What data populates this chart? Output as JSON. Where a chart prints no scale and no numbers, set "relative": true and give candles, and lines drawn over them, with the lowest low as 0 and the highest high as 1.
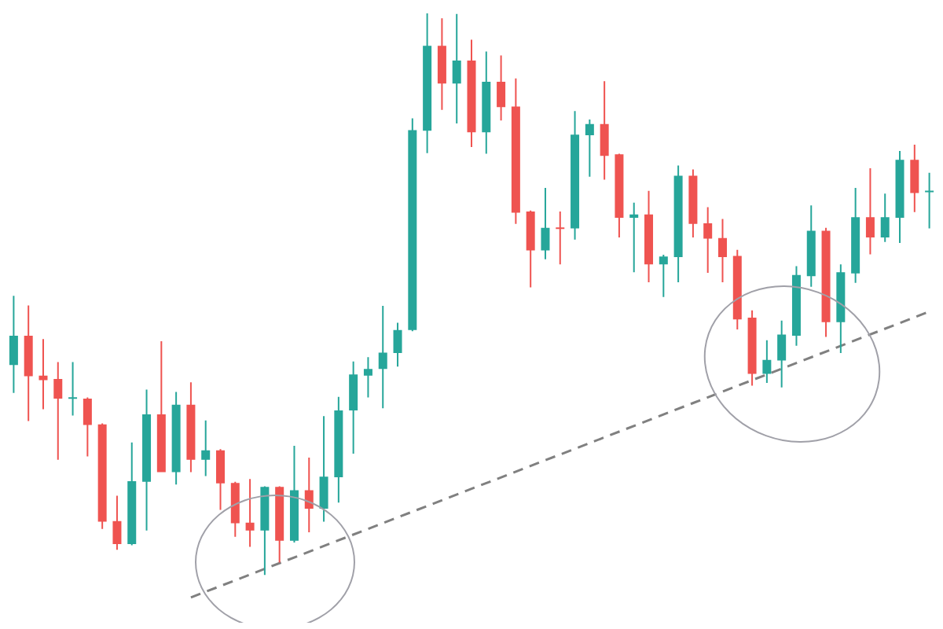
{
  "chart_data": {
    "type": "candlestick",
    "relative": true,
    "grid": false,
    "legend": false,
    "categories": [
      null,
      null,
      null,
      null,
      null,
      null,
      null,
      null,
      null,
      null,
      null,
      null,
      null,
      null,
      null,
      null,
      null,
      null,
      null,
      null,
      null,
      null,
      null,
      null,
      null,
      null,
      null,
      null,
      null,
      null,
      null,
      null,
      null,
      null,
      null,
      null,
      null,
      null,
      null,
      null,
      null,
      null,
      null,
      null,
      null,
      null,
      null,
      null,
      null,
      null,
      null,
      null,
      null,
      null,
      null,
      null,
      null,
      null,
      null,
      null,
      null,
      null,
      null
    ],
    "series": [
      {
        "type": "candlestick",
        "ohlc": [
          [
            0.374,
            0.497,
            0.324,
            0.426
          ],
          [
            0.426,
            0.48,
            0.274,
            0.354
          ],
          [
            0.355,
            0.42,
            0.295,
            0.347
          ],
          [
            0.349,
            0.379,
            0.205,
            0.314
          ],
          [
            0.314,
            0.379,
            0.284,
            0.316
          ],
          [
            0.314,
            0.316,
            0.211,
            0.267
          ],
          [
            0.268,
            0.27,
            0.082,
            0.095
          ],
          [
            0.096,
            0.141,
            0.045,
            0.055
          ],
          [
            0.055,
            0.236,
            0.053,
            0.167
          ],
          [
            0.166,
            0.33,
            0.079,
            0.286
          ],
          [
            0.286,
            0.416,
            0.183,
            0.183
          ],
          [
            0.183,
            0.326,
            0.161,
            0.303
          ],
          [
            0.303,
            0.343,
            0.183,
            0.205
          ],
          [
            0.205,
            0.275,
            0.176,
            0.222
          ],
          [
            0.222,
            0.224,
            0.116,
            0.163
          ],
          [
            0.164,
            0.166,
            0.068,
            0.092
          ],
          [
            0.093,
            0.171,
            0.05,
            0.079
          ],
          [
            0.079,
            0.158,
            0,
            0.157
          ],
          [
            0.157,
            0.158,
            0.022,
            0.061
          ],
          [
            0.061,
            0.23,
            0.058,
            0.151
          ],
          [
            0.151,
            0.209,
            0.076,
            0.118
          ],
          [
            0.118,
            0.283,
            0.095,
            0.175
          ],
          [
            0.174,
            0.317,
            0.129,
            0.293
          ],
          [
            0.293,
            0.38,
            0.216,
            0.357
          ],
          [
            0.355,
            0.388,
            0.316,
            0.367
          ],
          [
            0.367,
            0.479,
            0.297,
            0.396
          ],
          [
            0.395,
            0.449,
            0.371,
            0.436
          ],
          [
            0.436,
            0.813,
            0.434,
            0.792
          ],
          [
            0.791,
            1,
            0.751,
            0.942
          ],
          [
            0.942,
            0.991,
            0.828,
            0.875
          ],
          [
            0.875,
            0.999,
            0.804,
            0.916
          ],
          [
            0.916,
            0.953,
            0.762,
            0.788
          ],
          [
            0.788,
            0.932,
            0.75,
            0.878
          ],
          [
            0.878,
            0.925,
            0.809,
            0.833
          ],
          [
            0.834,
            0.884,
            0.625,
            0.645
          ],
          [
            0.647,
            0.649,
            0.512,
            0.578
          ],
          [
            0.578,
            0.689,
            0.562,
            0.618
          ],
          [
            0.618,
            0.647,
            0.553,
            0.617
          ],
          [
            0.617,
            0.826,
            0.597,
            0.784
          ],
          [
            0.783,
            0.811,
            0.709,
            0.803
          ],
          [
            0.803,
            0.879,
            0.704,
            0.746
          ],
          [
            0.749,
            0.75,
            0.601,
            0.636
          ],
          [
            0.636,
            0.663,
            0.539,
            0.642
          ],
          [
            0.642,
            0.684,
            0.521,
            0.553
          ],
          [
            0.553,
            0.57,
            0.495,
            0.567
          ],
          [
            0.566,
            0.729,
            0.521,
            0.711
          ],
          [
            0.711,
            0.722,
            0.601,
            0.625
          ],
          [
            0.626,
            0.655,
            0.538,
            0.599
          ],
          [
            0.6,
            0.634,
            0.521,
            0.566
          ],
          [
            0.568,
            0.579,
            0.437,
            0.455
          ],
          [
            0.458,
            0.471,
            0.337,
            0.358
          ],
          [
            0.358,
            0.418,
            0.342,
            0.383
          ],
          [
            0.382,
            0.453,
            0.334,
            0.428
          ],
          [
            0.426,
            0.55,
            0.408,
            0.534
          ],
          [
            0.532,
            0.658,
            0.513,
            0.613
          ],
          [
            0.613,
            0.618,
            0.424,
            0.45
          ],
          [
            0.45,
            0.553,
            0.395,
            0.539
          ],
          [
            0.537,
            0.689,
            0.52,
            0.637
          ],
          [
            0.637,
            0.724,
            0.571,
            0.601
          ],
          [
            0.601,
            0.679,
            0.593,
            0.637
          ],
          [
            0.636,
            0.755,
            0.591,
            0.739
          ],
          [
            0.739,
            0.766,
            0.646,
            0.68
          ],
          [
            0.682,
            0.716,
            0.617,
            0.684
          ]
        ],
        "colors": [
          "#26a69a",
          "#ef5350",
          "#ef5350",
          "#ef5350",
          "#26a69a",
          "#ef5350",
          "#ef5350",
          "#ef5350",
          "#26a69a",
          "#26a69a",
          "#ef5350",
          "#26a69a",
          "#ef5350",
          "#26a69a",
          "#ef5350",
          "#ef5350",
          "#ef5350",
          "#26a69a",
          "#ef5350",
          "#26a69a",
          "#ef5350",
          "#26a69a",
          "#26a69a",
          "#26a69a",
          "#26a69a",
          "#26a69a",
          "#26a69a",
          "#26a69a",
          "#26a69a",
          "#ef5350",
          "#26a69a",
          "#ef5350",
          "#26a69a",
          "#ef5350",
          "#ef5350",
          "#ef5350",
          "#26a69a",
          "#ef5350",
          "#26a69a",
          "#26a69a",
          "#ef5350",
          "#ef5350",
          "#26a69a",
          "#ef5350",
          "#26a69a",
          "#26a69a",
          "#ef5350",
          "#ef5350",
          "#ef5350",
          "#ef5350",
          "#ef5350",
          "#26a69a",
          "#26a69a",
          "#26a69a",
          "#26a69a",
          "#ef5350",
          "#26a69a",
          "#26a69a",
          "#ef5350",
          "#26a69a",
          "#26a69a",
          "#ef5350",
          "#26a69a"
        ]
      },
      {
        "type": "line",
        "values": [
          null,
          null,
          null,
          null,
          null,
          null,
          null,
          null,
          null,
          null,
          null,
          null,
          -0.04,
          null,
          null,
          null,
          null,
          null,
          null,
          null,
          null,
          null,
          null,
          null,
          null,
          null,
          null,
          null,
          null,
          null,
          null,
          null,
          null,
          null,
          null,
          null,
          null,
          null,
          null,
          null,
          null,
          null,
          null,
          null,
          null,
          null,
          null,
          null,
          null,
          null,
          null,
          null,
          null,
          null,
          null,
          null,
          null,
          null,
          null,
          null,
          null,
          null,
          0.469
        ],
        "color": "#808080",
        "line_style": "dashed",
        "marker": "none"
      }
    ]
  }
}
